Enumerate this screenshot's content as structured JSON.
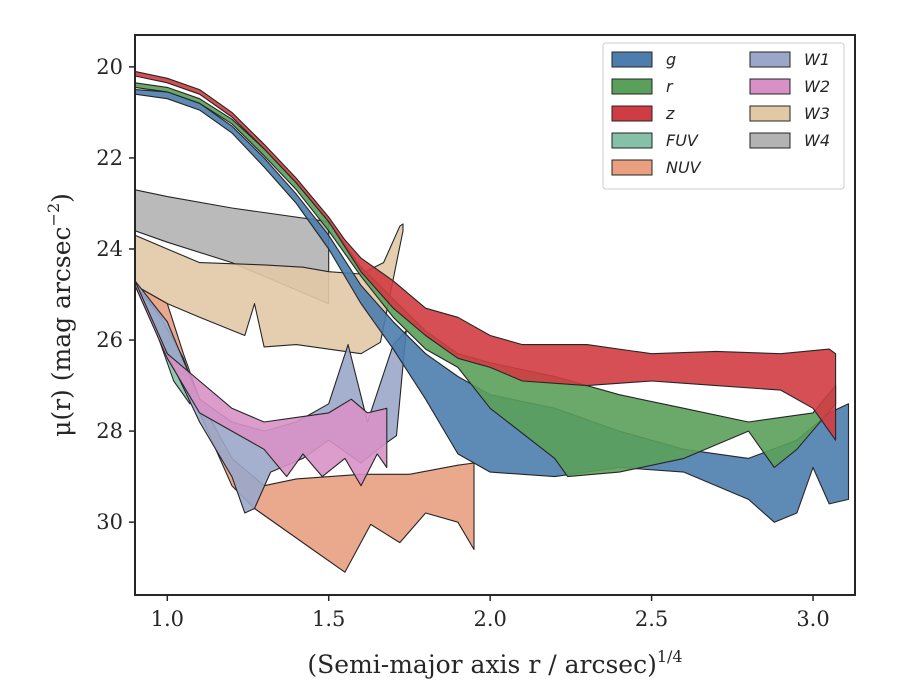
{
  "chart_data": {
    "type": "area",
    "xlabel": "(Semi-major axis r / arcsec)",
    "xlabel_exponent": "1/4",
    "ylabel": "μ(r) (mag arcsec",
    "ylabel_exponent": "−2",
    "ylabel_close": ")",
    "xlim": [
      0.9,
      3.13
    ],
    "ylim": [
      31.6,
      19.3
    ],
    "y_inverted": true,
    "grid": false,
    "xticks": [
      {
        "value": 1.0,
        "label": "1.0"
      },
      {
        "value": 1.5,
        "label": "1.5"
      },
      {
        "value": 2.0,
        "label": "2.0"
      },
      {
        "value": 2.5,
        "label": "2.5"
      },
      {
        "value": 3.0,
        "label": "3.0"
      }
    ],
    "yticks": [
      {
        "value": 20,
        "label": "20"
      },
      {
        "value": 22,
        "label": "22"
      },
      {
        "value": 24,
        "label": "24"
      },
      {
        "value": 26,
        "label": "26"
      },
      {
        "value": 28,
        "label": "28"
      },
      {
        "value": 30,
        "label": "30"
      }
    ],
    "legend": {
      "placement": "upper-right",
      "columns": 2
    },
    "series": [
      {
        "name": "W4",
        "color": "#b3b3b3",
        "upper": [
          [
            0.9,
            22.7
          ],
          [
            1.0,
            22.85
          ],
          [
            1.2,
            23.1
          ],
          [
            1.5,
            23.4
          ]
        ],
        "lower": [
          [
            0.9,
            23.6
          ],
          [
            1.0,
            23.85
          ],
          [
            1.2,
            24.3
          ],
          [
            1.3,
            24.6
          ],
          [
            1.5,
            25.2
          ]
        ]
      },
      {
        "name": "W3",
        "color": "#e2c9a6",
        "upper": [
          [
            0.9,
            23.7
          ],
          [
            1.0,
            24.0
          ],
          [
            1.1,
            24.3
          ],
          [
            1.3,
            24.35
          ],
          [
            1.42,
            24.4
          ],
          [
            1.5,
            24.5
          ],
          [
            1.6,
            24.55
          ],
          [
            1.67,
            24.3
          ],
          [
            1.72,
            23.5
          ],
          [
            1.73,
            23.45
          ]
        ],
        "lower": [
          [
            0.9,
            24.8
          ],
          [
            1.0,
            25.2
          ],
          [
            1.1,
            25.5
          ],
          [
            1.24,
            25.9
          ],
          [
            1.27,
            25.2
          ],
          [
            1.3,
            26.15
          ],
          [
            1.4,
            26.1
          ],
          [
            1.6,
            26.3
          ],
          [
            1.66,
            26.05
          ],
          [
            1.73,
            23.6
          ]
        ]
      },
      {
        "name": "NUV",
        "color": "#e8a07f",
        "upper": [
          [
            0.9,
            24.8
          ],
          [
            1.0,
            25.2
          ],
          [
            1.05,
            26.3
          ],
          [
            1.1,
            27.3
          ],
          [
            1.2,
            28.6
          ],
          [
            1.3,
            29.2
          ],
          [
            1.4,
            29.05
          ],
          [
            1.6,
            28.95
          ],
          [
            1.75,
            28.95
          ],
          [
            1.9,
            28.75
          ],
          [
            1.95,
            28.7
          ]
        ],
        "lower": [
          [
            0.9,
            24.8
          ],
          [
            1.0,
            25.6
          ],
          [
            1.1,
            27.6
          ],
          [
            1.2,
            29.2
          ],
          [
            1.27,
            29.7
          ],
          [
            1.45,
            30.6
          ],
          [
            1.55,
            31.1
          ],
          [
            1.63,
            30.05
          ],
          [
            1.72,
            30.45
          ],
          [
            1.8,
            29.8
          ],
          [
            1.9,
            30.0
          ],
          [
            1.95,
            30.6
          ]
        ]
      },
      {
        "name": "FUV",
        "color": "#85c1a6",
        "upper": [
          [
            0.9,
            24.8
          ],
          [
            0.98,
            25.5
          ],
          [
            1.05,
            26.4
          ],
          [
            1.08,
            27.0
          ]
        ],
        "lower": [
          [
            0.9,
            24.8
          ],
          [
            0.97,
            25.9
          ],
          [
            1.02,
            26.9
          ],
          [
            1.07,
            27.4
          ]
        ]
      },
      {
        "name": "W1",
        "color": "#9aa7c9",
        "upper": [
          [
            0.9,
            24.7
          ],
          [
            1.0,
            25.6
          ],
          [
            1.1,
            27.3
          ],
          [
            1.2,
            27.8
          ],
          [
            1.3,
            28.0
          ],
          [
            1.4,
            27.8
          ],
          [
            1.5,
            27.4
          ],
          [
            1.56,
            26.1
          ],
          [
            1.62,
            27.8
          ],
          [
            1.7,
            26.1
          ],
          [
            1.74,
            25.8
          ]
        ],
        "lower": [
          [
            0.9,
            24.8
          ],
          [
            1.0,
            26.3
          ],
          [
            1.1,
            27.8
          ],
          [
            1.2,
            29.0
          ],
          [
            1.24,
            29.8
          ],
          [
            1.27,
            29.7
          ],
          [
            1.32,
            28.9
          ],
          [
            1.42,
            28.6
          ],
          [
            1.5,
            28.2
          ],
          [
            1.6,
            28.7
          ],
          [
            1.67,
            28.3
          ],
          [
            1.71,
            28.1
          ],
          [
            1.74,
            25.8
          ]
        ]
      },
      {
        "name": "W2",
        "color": "#d891c6",
        "upper": [
          [
            0.9,
            24.7
          ],
          [
            1.0,
            26.3
          ],
          [
            1.1,
            26.9
          ],
          [
            1.2,
            27.5
          ],
          [
            1.3,
            27.8
          ],
          [
            1.4,
            27.7
          ],
          [
            1.5,
            27.6
          ],
          [
            1.57,
            27.3
          ],
          [
            1.62,
            27.6
          ],
          [
            1.68,
            27.5
          ]
        ],
        "lower": [
          [
            0.9,
            24.8
          ],
          [
            1.0,
            26.4
          ],
          [
            1.1,
            27.6
          ],
          [
            1.2,
            28.0
          ],
          [
            1.3,
            28.4
          ],
          [
            1.37,
            29.0
          ],
          [
            1.42,
            28.5
          ],
          [
            1.48,
            29.0
          ],
          [
            1.55,
            28.6
          ],
          [
            1.6,
            29.2
          ],
          [
            1.65,
            28.5
          ],
          [
            1.68,
            28.8
          ]
        ]
      },
      {
        "name": "g",
        "color": "#4c7dae",
        "upper": [
          [
            0.9,
            20.5
          ],
          [
            1.0,
            20.55
          ],
          [
            1.1,
            20.8
          ],
          [
            1.2,
            21.3
          ],
          [
            1.3,
            22.0
          ],
          [
            1.4,
            22.8
          ],
          [
            1.5,
            23.7
          ],
          [
            1.6,
            24.8
          ],
          [
            1.7,
            25.6
          ],
          [
            1.8,
            26.3
          ],
          [
            1.9,
            26.8
          ],
          [
            2.0,
            27.2
          ],
          [
            2.2,
            27.5
          ],
          [
            2.4,
            28.0
          ],
          [
            2.6,
            28.4
          ],
          [
            2.8,
            28.6
          ],
          [
            2.95,
            28.2
          ],
          [
            3.05,
            27.6
          ],
          [
            3.11,
            27.4
          ]
        ],
        "lower": [
          [
            0.9,
            20.6
          ],
          [
            1.0,
            20.7
          ],
          [
            1.1,
            20.95
          ],
          [
            1.2,
            21.45
          ],
          [
            1.3,
            22.2
          ],
          [
            1.4,
            23.0
          ],
          [
            1.5,
            24.0
          ],
          [
            1.6,
            25.2
          ],
          [
            1.7,
            26.2
          ],
          [
            1.8,
            27.3
          ],
          [
            1.9,
            28.5
          ],
          [
            2.0,
            28.9
          ],
          [
            2.2,
            29.0
          ],
          [
            2.4,
            28.8
          ],
          [
            2.6,
            28.9
          ],
          [
            2.8,
            29.5
          ],
          [
            2.88,
            30.0
          ],
          [
            2.95,
            29.8
          ],
          [
            3.0,
            28.8
          ],
          [
            3.05,
            29.6
          ],
          [
            3.11,
            29.5
          ]
        ]
      },
      {
        "name": "r",
        "color": "#5aa05a",
        "upper": [
          [
            0.9,
            20.35
          ],
          [
            1.0,
            20.45
          ],
          [
            1.1,
            20.7
          ],
          [
            1.2,
            21.15
          ],
          [
            1.3,
            21.8
          ],
          [
            1.4,
            22.55
          ],
          [
            1.5,
            23.4
          ],
          [
            1.6,
            24.4
          ],
          [
            1.7,
            25.1
          ],
          [
            1.8,
            25.8
          ],
          [
            1.9,
            26.3
          ],
          [
            2.0,
            26.5
          ],
          [
            2.2,
            26.8
          ],
          [
            2.4,
            27.2
          ],
          [
            2.6,
            27.5
          ],
          [
            2.8,
            27.8
          ],
          [
            3.0,
            27.6
          ],
          [
            3.07,
            27.0
          ]
        ],
        "lower": [
          [
            0.9,
            20.45
          ],
          [
            1.0,
            20.55
          ],
          [
            1.1,
            20.8
          ],
          [
            1.2,
            21.25
          ],
          [
            1.3,
            21.95
          ],
          [
            1.4,
            22.7
          ],
          [
            1.5,
            23.6
          ],
          [
            1.6,
            24.6
          ],
          [
            1.7,
            25.5
          ],
          [
            1.8,
            26.2
          ],
          [
            1.9,
            26.6
          ],
          [
            2.0,
            27.5
          ],
          [
            2.2,
            28.6
          ],
          [
            2.24,
            29.0
          ],
          [
            2.4,
            28.9
          ],
          [
            2.6,
            28.6
          ],
          [
            2.8,
            28.0
          ],
          [
            2.88,
            28.8
          ],
          [
            2.95,
            28.4
          ],
          [
            3.07,
            27.4
          ]
        ]
      },
      {
        "name": "z",
        "color": "#d03c43",
        "upper": [
          [
            0.9,
            20.1
          ],
          [
            1.0,
            20.25
          ],
          [
            1.1,
            20.5
          ],
          [
            1.2,
            21.0
          ],
          [
            1.3,
            21.7
          ],
          [
            1.4,
            22.45
          ],
          [
            1.5,
            23.3
          ],
          [
            1.55,
            23.8
          ],
          [
            1.6,
            24.2
          ],
          [
            1.7,
            24.7
          ],
          [
            1.8,
            25.3
          ],
          [
            1.9,
            25.5
          ],
          [
            2.0,
            25.9
          ],
          [
            2.1,
            26.1
          ],
          [
            2.3,
            26.1
          ],
          [
            2.5,
            26.3
          ],
          [
            2.7,
            26.25
          ],
          [
            2.9,
            26.3
          ],
          [
            3.05,
            26.2
          ],
          [
            3.07,
            26.3
          ]
        ],
        "lower": [
          [
            0.9,
            20.2
          ],
          [
            1.0,
            20.35
          ],
          [
            1.1,
            20.6
          ],
          [
            1.2,
            21.1
          ],
          [
            1.3,
            21.8
          ],
          [
            1.4,
            22.55
          ],
          [
            1.5,
            23.4
          ],
          [
            1.6,
            24.5
          ],
          [
            1.7,
            25.3
          ],
          [
            1.8,
            25.9
          ],
          [
            1.9,
            26.4
          ],
          [
            2.0,
            26.6
          ],
          [
            2.1,
            26.9
          ],
          [
            2.3,
            27.0
          ],
          [
            2.5,
            26.9
          ],
          [
            2.7,
            27.0
          ],
          [
            2.9,
            27.1
          ],
          [
            3.0,
            27.5
          ],
          [
            3.07,
            28.2
          ]
        ]
      }
    ]
  }
}
